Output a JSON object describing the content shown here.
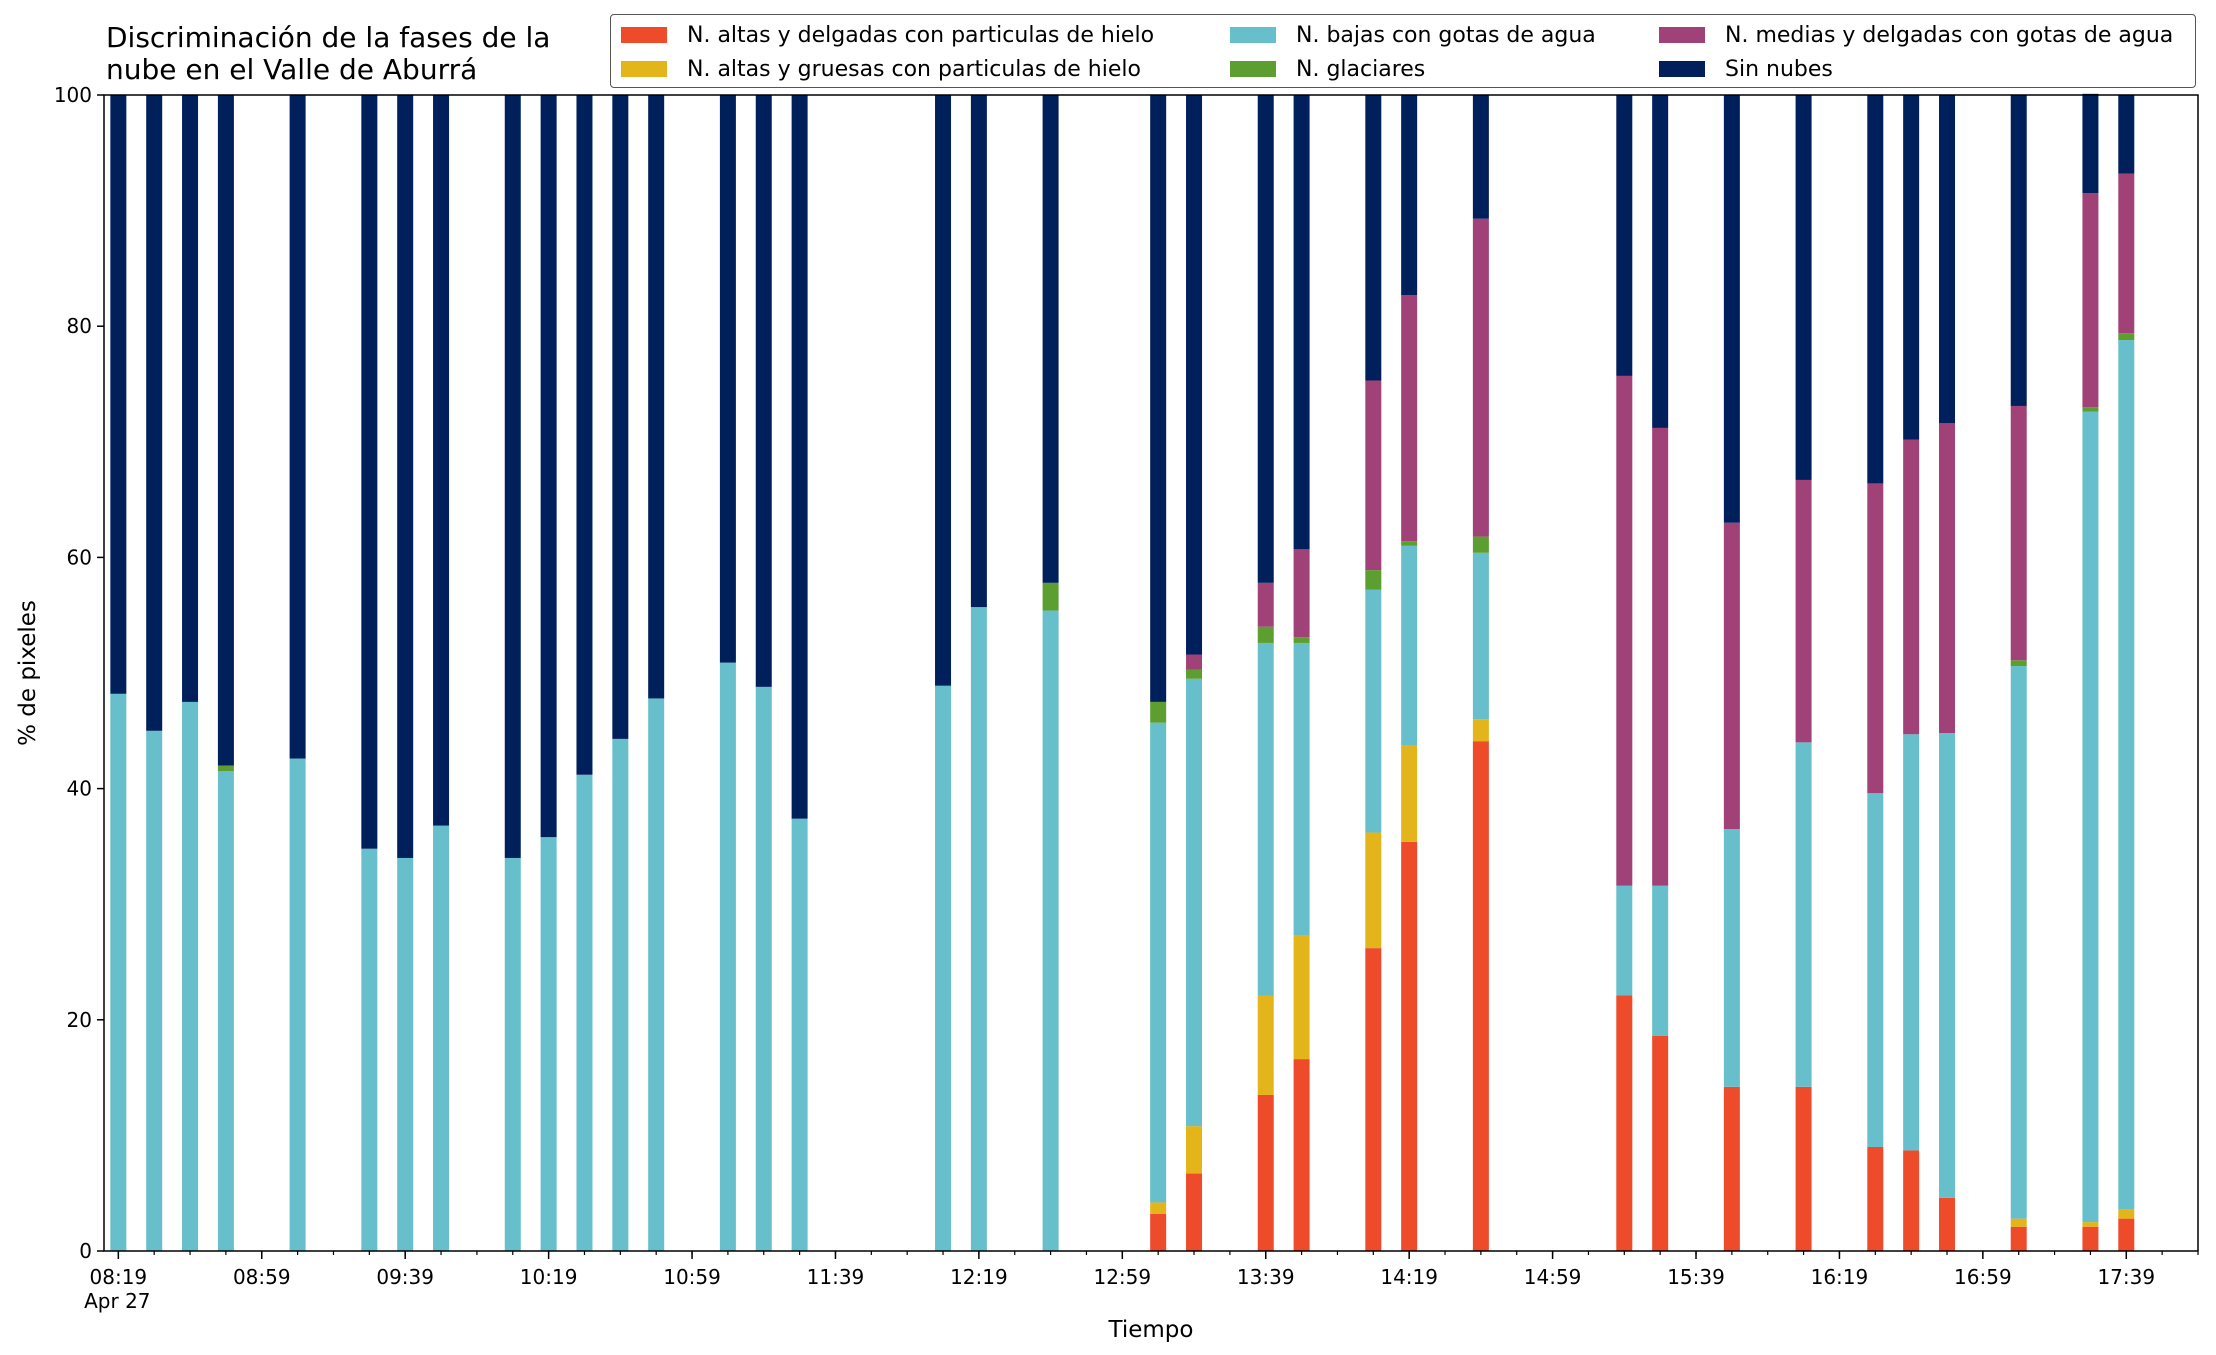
{
  "chart_data": {
    "type": "bar",
    "stacked": true,
    "title": "Discriminación de la fases de la\nnube en el Valle de Aburrá",
    "xlabel": "Tiempo",
    "ylabel": "% de pixeles",
    "ylim": [
      0,
      100
    ],
    "yticks": [
      0,
      20,
      40,
      60,
      80,
      100
    ],
    "xlim": [
      "08:15",
      "17:59"
    ],
    "xticks": [
      {
        "time": "08:19",
        "label": "08:19",
        "sublabel": "Apr 27"
      },
      {
        "time": "08:59",
        "label": "08:59"
      },
      {
        "time": "09:39",
        "label": "09:39"
      },
      {
        "time": "10:19",
        "label": "10:19"
      },
      {
        "time": "10:59",
        "label": "10:59"
      },
      {
        "time": "11:39",
        "label": "11:39"
      },
      {
        "time": "12:19",
        "label": "12:19"
      },
      {
        "time": "12:59",
        "label": "12:59"
      },
      {
        "time": "13:39",
        "label": "13:39"
      },
      {
        "time": "14:19",
        "label": "14:19"
      },
      {
        "time": "14:59",
        "label": "14:59"
      },
      {
        "time": "15:39",
        "label": "15:39"
      },
      {
        "time": "16:19",
        "label": "16:19"
      },
      {
        "time": "16:59",
        "label": "16:59"
      },
      {
        "time": "17:39",
        "label": "17:39"
      }
    ],
    "minor_tick_interval_minutes": 10,
    "grid": false,
    "legend_position": "top-right",
    "x": [
      "08:19",
      "08:29",
      "08:39",
      "08:49",
      "09:09",
      "09:29",
      "09:39",
      "09:49",
      "10:09",
      "10:19",
      "10:29",
      "10:39",
      "10:49",
      "11:09",
      "11:19",
      "11:29",
      "12:09",
      "12:19",
      "12:39",
      "13:09",
      "13:19",
      "13:39",
      "13:49",
      "14:09",
      "14:19",
      "14:39",
      "15:19",
      "15:29",
      "15:49",
      "16:09",
      "16:29",
      "16:39",
      "16:49",
      "17:09",
      "17:29",
      "17:39"
    ],
    "series": [
      {
        "name": "N. altas y delgadas con particulas de hielo",
        "color": "#ee4b2b",
        "values": [
          0,
          0,
          0,
          0,
          0,
          0,
          0,
          0,
          0,
          0,
          0,
          0,
          0,
          0,
          0,
          0,
          0,
          0,
          0,
          3.2,
          6.7,
          13.5,
          16.6,
          26.2,
          35.4,
          44.1,
          22.1,
          18.6,
          14.2,
          14.2,
          9.0,
          8.7,
          4.6,
          2.1,
          2.1,
          2.8
        ]
      },
      {
        "name": "N. altas y gruesas con particulas de hielo",
        "color": "#e3b51b",
        "values": [
          0,
          0,
          0,
          0,
          0,
          0,
          0,
          0,
          0,
          0,
          0,
          0,
          0,
          0,
          0,
          0,
          0,
          0,
          0,
          1.0,
          4.1,
          8.6,
          10.7,
          10.0,
          8.3,
          1.9,
          0,
          0,
          0,
          0,
          0,
          0,
          0,
          0.7,
          0.4,
          0.8
        ]
      },
      {
        "name": "N. bajas con gotas de agua",
        "color": "#67bfcb",
        "values": [
          48.2,
          45.0,
          47.5,
          41.5,
          42.6,
          34.8,
          34.0,
          36.8,
          34.0,
          35.8,
          41.2,
          44.3,
          47.8,
          50.9,
          48.8,
          37.4,
          48.9,
          55.7,
          55.4,
          41.5,
          38.7,
          30.5,
          25.3,
          21.0,
          17.3,
          14.4,
          9.5,
          13.0,
          22.3,
          29.8,
          30.6,
          36.0,
          40.2,
          47.8,
          70.1,
          75.2
        ]
      },
      {
        "name": "N. glaciares",
        "color": "#5d9e31",
        "values": [
          0,
          0,
          0,
          0.5,
          0,
          0,
          0,
          0,
          0,
          0,
          0,
          0,
          0,
          0,
          0,
          0,
          0,
          0,
          2.4,
          1.8,
          0.8,
          1.4,
          0.5,
          1.7,
          0.4,
          1.4,
          0,
          0,
          0,
          0,
          0,
          0,
          0,
          0.5,
          0.4,
          0.6
        ]
      },
      {
        "name": "N. medias y delgadas con gotas de agua",
        "color": "#a04278",
        "values": [
          0,
          0,
          0,
          0,
          0,
          0,
          0,
          0,
          0,
          0,
          0,
          0,
          0,
          0,
          0,
          0,
          0,
          0,
          0,
          0,
          1.3,
          3.8,
          7.6,
          16.4,
          21.3,
          27.5,
          44.1,
          39.6,
          26.5,
          22.7,
          26.8,
          25.5,
          26.8,
          22.0,
          18.5,
          13.8
        ]
      },
      {
        "name": "Sin nubes",
        "color": "#00205b",
        "values": [
          51.8,
          55.0,
          52.5,
          58.0,
          57.4,
          65.2,
          66.0,
          63.2,
          66.0,
          64.2,
          58.8,
          55.7,
          52.2,
          49.1,
          51.2,
          62.6,
          51.1,
          44.3,
          42.2,
          52.5,
          48.4,
          42.2,
          39.3,
          24.7,
          17.3,
          10.7,
          24.3,
          28.8,
          37.0,
          33.3,
          33.6,
          29.8,
          28.4,
          26.9,
          8.6,
          6.8
        ]
      }
    ]
  }
}
